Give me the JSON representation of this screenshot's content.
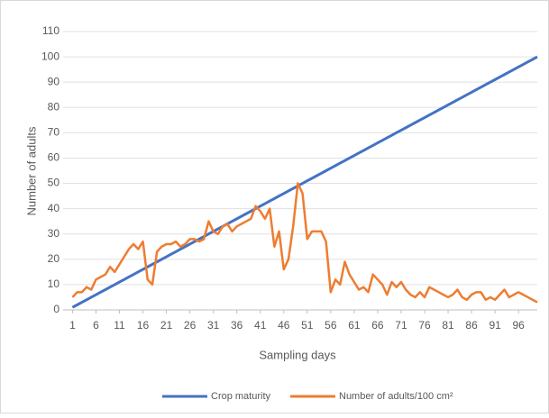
{
  "chart_data": {
    "type": "line",
    "x_label": "Sampling days",
    "y_label": "Number of adults",
    "x": [
      1,
      2,
      3,
      4,
      5,
      6,
      7,
      8,
      9,
      10,
      11,
      12,
      13,
      14,
      15,
      16,
      17,
      18,
      19,
      20,
      21,
      22,
      23,
      24,
      25,
      26,
      27,
      28,
      29,
      30,
      31,
      32,
      33,
      34,
      35,
      36,
      37,
      38,
      39,
      40,
      41,
      42,
      43,
      44,
      45,
      46,
      47,
      48,
      49,
      50,
      51,
      52,
      53,
      54,
      55,
      56,
      57,
      58,
      59,
      60,
      61,
      62,
      63,
      64,
      65,
      66,
      67,
      68,
      69,
      70,
      71,
      72,
      73,
      74,
      75,
      76,
      77,
      78,
      79,
      80,
      81,
      82,
      83,
      84,
      85,
      86,
      87,
      88,
      89,
      90,
      91,
      92,
      93,
      94,
      95,
      96,
      97,
      98,
      99,
      100
    ],
    "series": [
      {
        "name": "Crop maturity",
        "color": "#4472c4",
        "values": [
          1,
          2,
          3,
          4,
          5,
          6,
          7,
          8,
          9,
          10,
          11,
          12,
          13,
          14,
          15,
          16,
          17,
          18,
          19,
          20,
          21,
          22,
          23,
          24,
          25,
          26,
          27,
          28,
          29,
          30,
          31,
          32,
          33,
          34,
          35,
          36,
          37,
          38,
          39,
          40,
          41,
          42,
          43,
          44,
          45,
          46,
          47,
          48,
          49,
          50,
          51,
          52,
          53,
          54,
          55,
          56,
          57,
          58,
          59,
          60,
          61,
          62,
          63,
          64,
          65,
          66,
          67,
          68,
          69,
          70,
          71,
          72,
          73,
          74,
          75,
          76,
          77,
          78,
          79,
          80,
          81,
          82,
          83,
          84,
          85,
          86,
          87,
          88,
          89,
          90,
          91,
          92,
          93,
          94,
          95,
          96,
          97,
          98,
          99,
          100
        ]
      },
      {
        "name": "Number of adults/100 cm²",
        "color": "#ed7d31",
        "values": [
          5,
          7,
          7,
          9,
          8,
          12,
          13,
          14,
          17,
          15,
          18,
          21,
          24,
          26,
          24,
          27,
          12,
          10,
          23,
          25,
          26,
          26,
          27,
          25,
          26,
          28,
          28,
          27,
          28,
          35,
          31,
          30,
          33,
          34,
          31,
          33,
          34,
          35,
          36,
          41,
          39,
          36,
          40,
          25,
          31,
          16,
          20,
          33,
          50,
          46,
          28,
          31,
          31,
          31,
          27,
          7,
          12,
          10,
          19,
          14,
          11,
          8,
          9,
          7,
          14,
          12,
          10,
          6,
          11,
          9,
          11,
          8,
          6,
          5,
          7,
          5,
          9,
          8,
          7,
          6,
          5,
          6,
          8,
          5,
          4,
          6,
          7,
          7,
          4,
          5,
          4,
          6,
          8,
          5,
          6,
          7,
          6,
          5,
          4,
          3
        ]
      }
    ],
    "xlim": [
      -1,
      100
    ],
    "xticks": [
      1,
      6,
      11,
      16,
      21,
      26,
      31,
      36,
      41,
      46,
      51,
      56,
      61,
      66,
      71,
      76,
      81,
      86,
      91,
      96
    ],
    "ylim": [
      0,
      110
    ],
    "yticks": [
      0,
      10,
      20,
      30,
      40,
      50,
      60,
      70,
      80,
      90,
      100,
      110
    ],
    "grid": true,
    "legend": "bottom"
  }
}
